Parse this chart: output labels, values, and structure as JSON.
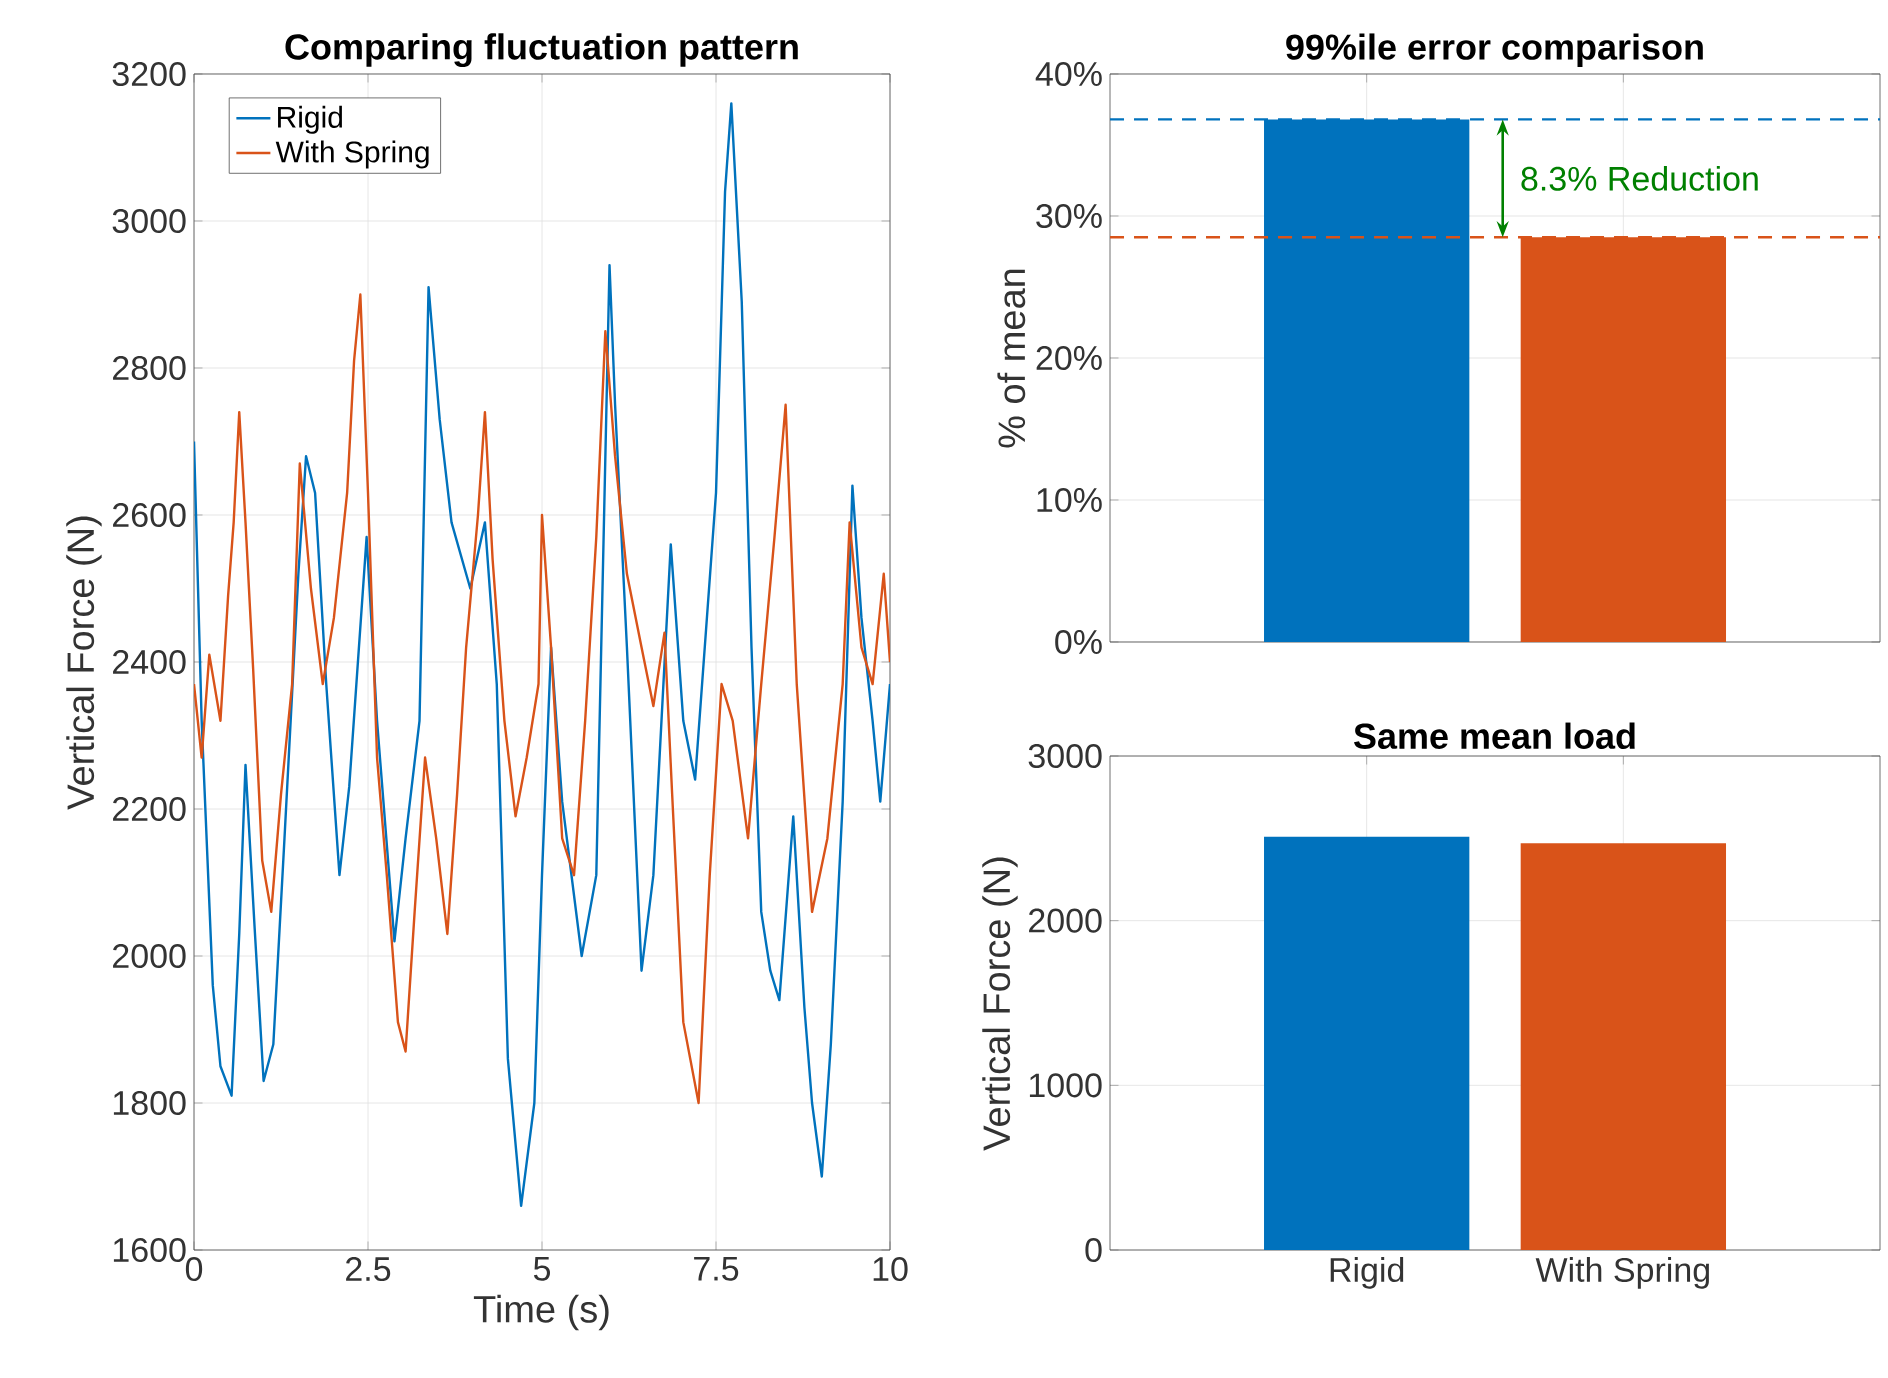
{
  "chart_data": [
    {
      "type": "line",
      "title": "Comparing fluctuation pattern",
      "xlabel": "Time (s)",
      "ylabel": "Vertical Force (N)",
      "xlim": [
        0,
        10
      ],
      "xticks": [
        0,
        2.5,
        5,
        7.5,
        10
      ],
      "ylim": [
        1600,
        3200
      ],
      "yticks": [
        1600,
        1800,
        2000,
        2200,
        2400,
        2600,
        2800,
        3000,
        3200
      ],
      "grid": true,
      "legend": "top left",
      "series": [
        {
          "name": "Rigid",
          "color": "#0072bd",
          "x": [
            0,
            0.11,
            0.27,
            0.38,
            0.54,
            0.65,
            0.74,
            0.87,
            1.0,
            1.14,
            1.3,
            1.5,
            1.61,
            1.74,
            1.9,
            2.09,
            2.23,
            2.48,
            2.63,
            2.88,
            3.04,
            3.24,
            3.37,
            3.53,
            3.7,
            3.97,
            4.18,
            4.35,
            4.51,
            4.7,
            4.89,
            5.0,
            5.13,
            5.29,
            5.57,
            5.78,
            5.97,
            6.05,
            6.22,
            6.43,
            6.6,
            6.85,
            7.03,
            7.2,
            7.5,
            7.63,
            7.72,
            7.87,
            8.01,
            8.15,
            8.28,
            8.41,
            8.61,
            8.77,
            8.88,
            9.02,
            9.15,
            9.32,
            9.46,
            9.59,
            9.75,
            9.86,
            10.0
          ],
          "values": [
            2700,
            2320,
            1960,
            1850,
            1810,
            2030,
            2260,
            2040,
            1830,
            1880,
            2160,
            2520,
            2680,
            2630,
            2370,
            2110,
            2230,
            2570,
            2320,
            2020,
            2160,
            2320,
            2910,
            2730,
            2590,
            2500,
            2590,
            2370,
            1860,
            1660,
            1800,
            2110,
            2420,
            2210,
            2000,
            2110,
            2940,
            2750,
            2420,
            1980,
            2110,
            2560,
            2320,
            2240,
            2630,
            3040,
            3160,
            2890,
            2420,
            2060,
            1980,
            1940,
            2190,
            1930,
            1800,
            1700,
            1880,
            2210,
            2640,
            2460,
            2320,
            2210,
            2370
          ]
        },
        {
          "name": "With Spring",
          "color": "#d95319",
          "x": [
            0,
            0.11,
            0.22,
            0.38,
            0.49,
            0.57,
            0.65,
            0.74,
            0.85,
            0.98,
            1.11,
            1.25,
            1.41,
            1.52,
            1.68,
            1.85,
            2.01,
            2.2,
            2.3,
            2.39,
            2.5,
            2.63,
            2.77,
            2.93,
            3.04,
            3.17,
            3.32,
            3.48,
            3.64,
            3.78,
            3.91,
            4.08,
            4.18,
            4.29,
            4.46,
            4.62,
            4.78,
            4.95,
            5.0,
            5.13,
            5.29,
            5.46,
            5.62,
            5.78,
            5.91,
            6.05,
            6.22,
            6.43,
            6.6,
            6.76,
            6.87,
            7.03,
            7.25,
            7.41,
            7.58,
            7.74,
            7.96,
            8.15,
            8.34,
            8.5,
            8.66,
            8.88,
            9.1,
            9.32,
            9.42,
            9.59,
            9.75,
            9.91,
            10.0
          ],
          "values": [
            2370,
            2270,
            2410,
            2320,
            2490,
            2590,
            2740,
            2590,
            2390,
            2130,
            2060,
            2220,
            2370,
            2670,
            2500,
            2370,
            2460,
            2630,
            2810,
            2900,
            2630,
            2270,
            2110,
            1910,
            1870,
            2060,
            2270,
            2160,
            2030,
            2220,
            2420,
            2600,
            2740,
            2540,
            2320,
            2190,
            2270,
            2370,
            2600,
            2420,
            2160,
            2110,
            2320,
            2570,
            2850,
            2680,
            2520,
            2420,
            2340,
            2440,
            2220,
            1910,
            1800,
            2110,
            2370,
            2320,
            2160,
            2370,
            2570,
            2750,
            2370,
            2060,
            2160,
            2370,
            2590,
            2420,
            2370,
            2520,
            2400
          ]
        }
      ]
    },
    {
      "type": "bar",
      "title": "99%ile error comparison",
      "ylabel": "% of mean",
      "categories": [
        null,
        null
      ],
      "values": [
        36.8,
        28.5
      ],
      "colors": [
        "#0072bd",
        "#d95319"
      ],
      "ylim": [
        0,
        40
      ],
      "yticks": [
        {
          "value": 0,
          "label": "0%"
        },
        {
          "value": 10,
          "label": "10%"
        },
        {
          "value": 20,
          "label": "20%"
        },
        {
          "value": 30,
          "label": "30%"
        },
        {
          "value": 40,
          "label": "40%"
        }
      ],
      "grid": true,
      "ref_lines": [
        {
          "axis": "y",
          "value": 36.8,
          "color": "#0072bd",
          "line_style": "dashed"
        },
        {
          "axis": "y",
          "value": 28.5,
          "color": "#d95319",
          "line_style": "dashed"
        }
      ],
      "annotations": [
        "8.3% Reduction"
      ]
    },
    {
      "type": "bar",
      "title": "Same mean load",
      "ylabel": "Vertical Force (N)",
      "categories": [
        "Rigid",
        "With Spring"
      ],
      "values": [
        2510,
        2470
      ],
      "colors": [
        "#0072bd",
        "#d95319"
      ],
      "ylim": [
        0,
        3000
      ],
      "yticks": [
        0,
        1000,
        2000,
        3000
      ],
      "grid": true
    }
  ]
}
